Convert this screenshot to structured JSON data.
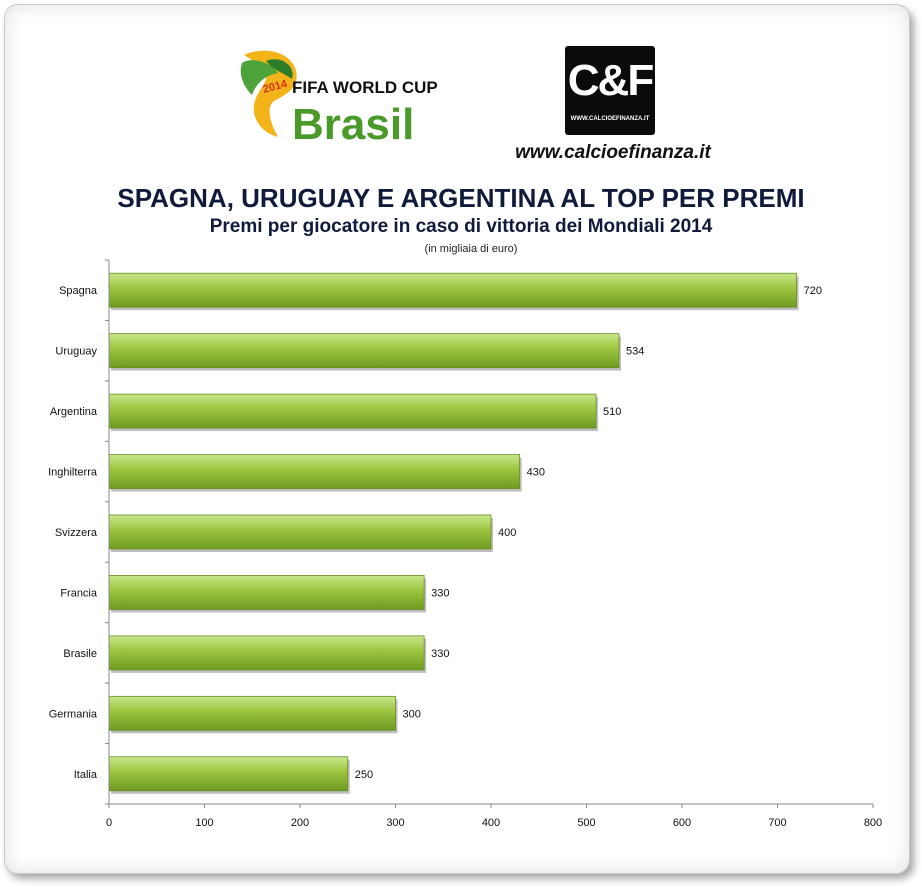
{
  "logos": {
    "wc_line1": "FIFA WORLD CUP",
    "wc_line2": "Brasil",
    "wc_year": "2014",
    "cf_mark": "C&F",
    "cf_small": "WWW.CALCIOEFINANZA.IT",
    "cf_url": "www.calcioefinanza.it"
  },
  "colors": {
    "bar_light": "#c8e68a",
    "bar_mid": "#9bc53e",
    "bar_dark": "#6e9a22",
    "title": "#101a3a"
  },
  "chart_data": {
    "type": "bar",
    "orientation": "horizontal",
    "title": "SPAGNA, URUGUAY E ARGENTINA AL TOP PER PREMI",
    "subtitle": "Premi per giocatore in caso di vittoria dei Mondiali 2014",
    "unit_note": "(in migliaia di euro)",
    "categories": [
      "Spagna",
      "Uruguay",
      "Argentina",
      "Inghilterra",
      "Svizzera",
      "Francia",
      "Brasile",
      "Germania",
      "Italia"
    ],
    "values": [
      720,
      534,
      510,
      430,
      400,
      330,
      330,
      300,
      250
    ],
    "xlim": [
      0,
      800
    ],
    "xticks": [
      0,
      100,
      200,
      300,
      400,
      500,
      600,
      700,
      800
    ],
    "grid": false,
    "legend": "none"
  }
}
